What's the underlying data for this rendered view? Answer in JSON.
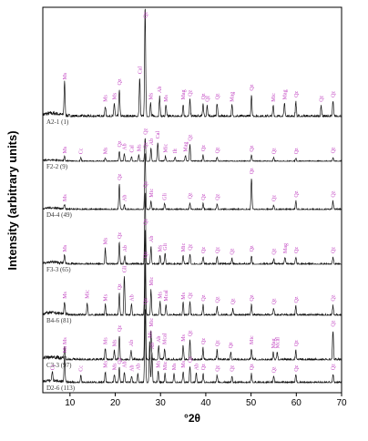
{
  "chart_data": {
    "type": "line",
    "xlabel": "°2θ",
    "ylabel": "Intensity (arbitrary units)",
    "xlim": [
      4,
      70
    ],
    "xticks": [
      10,
      20,
      30,
      40,
      50,
      60,
      70
    ],
    "colors": {
      "pattern": "#111111",
      "peak_label": "#c040c0",
      "sample_label": "#333333"
    },
    "series": [
      {
        "name": "A2-1 (1)",
        "peaks": [
          {
            "x": 8.8,
            "h": 0.3,
            "label": "Ms"
          },
          {
            "x": 17.8,
            "h": 0.1,
            "label": "Ms"
          },
          {
            "x": 19.8,
            "h": 0.12,
            "label": "Ms"
          },
          {
            "x": 20.9,
            "h": 0.25,
            "label": "Qz"
          },
          {
            "x": 25.4,
            "h": 0.35,
            "label": "Cal"
          },
          {
            "x": 26.6,
            "h": 1.0,
            "label": "Qz"
          },
          {
            "x": 27.8,
            "h": 0.12,
            "label": "Ms"
          },
          {
            "x": 29.8,
            "h": 0.18,
            "label": "Ab"
          },
          {
            "x": 31.2,
            "h": 0.1,
            "label": "Ms"
          },
          {
            "x": 35.0,
            "h": 0.12,
            "label": "Mag"
          },
          {
            "x": 36.5,
            "h": 0.15,
            "label": "Qz"
          },
          {
            "x": 39.4,
            "h": 0.12,
            "label": "Qz"
          },
          {
            "x": 40.3,
            "h": 0.1,
            "label": "Qz"
          },
          {
            "x": 42.5,
            "h": 0.12,
            "label": "Qz"
          },
          {
            "x": 45.8,
            "h": 0.1,
            "label": "Mag"
          },
          {
            "x": 50.1,
            "h": 0.2,
            "label": "Qz"
          },
          {
            "x": 54.9,
            "h": 0.1,
            "label": "Mic"
          },
          {
            "x": 57.4,
            "h": 0.12,
            "label": "Mag"
          },
          {
            "x": 59.9,
            "h": 0.14,
            "label": "Qz"
          },
          {
            "x": 65.5,
            "h": 0.1,
            "label": "Qz"
          },
          {
            "x": 68.1,
            "h": 0.14,
            "label": "Qz"
          }
        ]
      },
      {
        "name": "F2-2 (9)",
        "peaks": [
          {
            "x": 8.8,
            "h": 0.1,
            "label": "Ms"
          },
          {
            "x": 12.4,
            "h": 0.08,
            "label": "Cc"
          },
          {
            "x": 17.8,
            "h": 0.08,
            "label": "Ms"
          },
          {
            "x": 20.9,
            "h": 0.25,
            "label": "Qz"
          },
          {
            "x": 22.0,
            "h": 0.18,
            "label": "Ab"
          },
          {
            "x": 23.6,
            "h": 0.12,
            "label": "Cal"
          },
          {
            "x": 25.2,
            "h": 0.15,
            "label": "Ms"
          },
          {
            "x": 26.6,
            "h": 0.55,
            "label": "Qz"
          },
          {
            "x": 27.9,
            "h": 0.3,
            "label": "Ab"
          },
          {
            "x": 29.4,
            "h": 0.45,
            "label": "Cal"
          },
          {
            "x": 31.1,
            "h": 0.12,
            "label": "Mic"
          },
          {
            "x": 33.2,
            "h": 0.1,
            "label": "Ilt"
          },
          {
            "x": 35.5,
            "h": 0.14,
            "label": "Mag"
          },
          {
            "x": 36.5,
            "h": 0.4,
            "label": "Qz"
          },
          {
            "x": 39.4,
            "h": 0.15,
            "label": "Qz"
          },
          {
            "x": 42.5,
            "h": 0.1,
            "label": "Qz"
          },
          {
            "x": 50.1,
            "h": 0.14,
            "label": "Qz"
          },
          {
            "x": 55.0,
            "h": 0.08,
            "label": "Qz"
          },
          {
            "x": 59.9,
            "h": 0.08,
            "label": "Qz"
          },
          {
            "x": 68.1,
            "h": 0.1,
            "label": "Qz"
          }
        ]
      },
      {
        "name": "D4-4 (49)",
        "peaks": [
          {
            "x": 8.8,
            "h": 0.08,
            "label": "Ms"
          },
          {
            "x": 20.9,
            "h": 0.45,
            "label": "Qz"
          },
          {
            "x": 22.0,
            "h": 0.08,
            "label": "Ab"
          },
          {
            "x": 26.6,
            "h": 1.0,
            "label": "Qz"
          },
          {
            "x": 27.9,
            "h": 0.15,
            "label": "Mic"
          },
          {
            "x": 30.9,
            "h": 0.1,
            "label": "Gli"
          },
          {
            "x": 36.5,
            "h": 0.12,
            "label": "Qz"
          },
          {
            "x": 39.4,
            "h": 0.1,
            "label": "Qz"
          },
          {
            "x": 42.5,
            "h": 0.1,
            "label": "Qz"
          },
          {
            "x": 50.1,
            "h": 0.55,
            "label": "Qz"
          },
          {
            "x": 55.0,
            "h": 0.08,
            "label": "Qz"
          },
          {
            "x": 59.9,
            "h": 0.15,
            "label": "Qz"
          },
          {
            "x": 68.1,
            "h": 0.15,
            "label": "Qz"
          }
        ]
      },
      {
        "name": "F3-3 (65)",
        "peaks": [
          {
            "x": 8.8,
            "h": 0.12,
            "label": "Ms"
          },
          {
            "x": 17.8,
            "h": 0.22,
            "label": "Ms"
          },
          {
            "x": 20.9,
            "h": 0.3,
            "label": "Qz"
          },
          {
            "x": 22.1,
            "h": 0.12,
            "label": "Ab"
          },
          {
            "x": 26.6,
            "h": 1.0,
            "label": "Qz"
          },
          {
            "x": 27.9,
            "h": 0.25,
            "label": "Ab"
          },
          {
            "x": 29.9,
            "h": 0.12,
            "label": "Ms"
          },
          {
            "x": 31.0,
            "h": 0.14,
            "label": "Gli"
          },
          {
            "x": 35.0,
            "h": 0.12,
            "label": "Mic"
          },
          {
            "x": 36.5,
            "h": 0.14,
            "label": "Qz"
          },
          {
            "x": 39.4,
            "h": 0.1,
            "label": "Qz"
          },
          {
            "x": 42.5,
            "h": 0.1,
            "label": "Qz"
          },
          {
            "x": 45.8,
            "h": 0.08,
            "label": "Qz"
          },
          {
            "x": 50.1,
            "h": 0.12,
            "label": "Qz"
          },
          {
            "x": 55.0,
            "h": 0.08,
            "label": "Qz"
          },
          {
            "x": 57.5,
            "h": 0.1,
            "label": "Mag"
          },
          {
            "x": 59.9,
            "h": 0.1,
            "label": "Qz"
          },
          {
            "x": 68.1,
            "h": 0.1,
            "label": "Qz"
          }
        ]
      },
      {
        "name": "B4-6 (81)",
        "peaks": [
          {
            "x": 8.8,
            "h": 0.15,
            "label": "Ms"
          },
          {
            "x": 13.8,
            "h": 0.15,
            "label": "Mic"
          },
          {
            "x": 17.8,
            "h": 0.12,
            "label": "Ms"
          },
          {
            "x": 20.9,
            "h": 0.25,
            "label": "Qz"
          },
          {
            "x": 22.0,
            "h": 0.45,
            "label": "Gli"
          },
          {
            "x": 23.6,
            "h": 0.12,
            "label": "Ab"
          },
          {
            "x": 26.6,
            "h": 1.0,
            "label": "Qz"
          },
          {
            "x": 27.9,
            "h": 0.3,
            "label": "Mic"
          },
          {
            "x": 29.9,
            "h": 0.15,
            "label": "Ms"
          },
          {
            "x": 31.2,
            "h": 0.12,
            "label": "Mcal"
          },
          {
            "x": 35.0,
            "h": 0.14,
            "label": "Ms"
          },
          {
            "x": 36.5,
            "h": 0.15,
            "label": "Qz"
          },
          {
            "x": 39.4,
            "h": 0.12,
            "label": "Qz"
          },
          {
            "x": 42.5,
            "h": 0.1,
            "label": "Qz"
          },
          {
            "x": 46.0,
            "h": 0.08,
            "label": "Qz"
          },
          {
            "x": 50.1,
            "h": 0.12,
            "label": "Qz"
          },
          {
            "x": 55.0,
            "h": 0.08,
            "label": "Qz"
          },
          {
            "x": 59.9,
            "h": 0.1,
            "label": "Qz"
          },
          {
            "x": 68.1,
            "h": 0.12,
            "label": "Qz"
          }
        ]
      },
      {
        "name": "C3-3 (97)",
        "peaks": [
          {
            "x": 8.8,
            "h": 0.12,
            "label": "Ms"
          },
          {
            "x": 17.8,
            "h": 0.12,
            "label": "Ms"
          },
          {
            "x": 19.8,
            "h": 0.1,
            "label": "Ms"
          },
          {
            "x": 20.9,
            "h": 0.25,
            "label": "Qz"
          },
          {
            "x": 23.5,
            "h": 0.1,
            "label": "Ab"
          },
          {
            "x": 26.6,
            "h": 1.0,
            "label": "Qz"
          },
          {
            "x": 27.9,
            "h": 0.3,
            "label": "Mic"
          },
          {
            "x": 29.6,
            "h": 0.14,
            "label": "Ab"
          },
          {
            "x": 30.9,
            "h": 0.12,
            "label": "Mcal"
          },
          {
            "x": 35.0,
            "h": 0.15,
            "label": "Ms"
          },
          {
            "x": 36.5,
            "h": 0.2,
            "label": "Qz"
          },
          {
            "x": 39.4,
            "h": 0.12,
            "label": "Qz"
          },
          {
            "x": 42.5,
            "h": 0.1,
            "label": "Qz"
          },
          {
            "x": 45.5,
            "h": 0.08,
            "label": "Qz"
          },
          {
            "x": 50.1,
            "h": 0.12,
            "label": "Mic"
          },
          {
            "x": 54.9,
            "h": 0.08,
            "label": "Mag"
          },
          {
            "x": 55.8,
            "h": 0.08,
            "label": "Mcal"
          },
          {
            "x": 59.9,
            "h": 0.1,
            "label": "Qz"
          },
          {
            "x": 68.1,
            "h": 0.3,
            "label": "Qz"
          }
        ]
      },
      {
        "name": "D2-6 (113)",
        "peaks": [
          {
            "x": 6.1,
            "h": 0.12,
            "label": "Cc"
          },
          {
            "x": 8.8,
            "h": 0.35,
            "label": "Ms"
          },
          {
            "x": 12.4,
            "h": 0.1,
            "label": "Cc"
          },
          {
            "x": 17.8,
            "h": 0.15,
            "label": "Ms"
          },
          {
            "x": 19.8,
            "h": 0.12,
            "label": "Ms"
          },
          {
            "x": 20.9,
            "h": 0.2,
            "label": "Qz"
          },
          {
            "x": 22.0,
            "h": 0.15,
            "label": "Ab"
          },
          {
            "x": 23.6,
            "h": 0.1,
            "label": "Ab"
          },
          {
            "x": 25.0,
            "h": 0.12,
            "label": "Ab"
          },
          {
            "x": 26.6,
            "h": 1.0,
            "label": "Qz"
          },
          {
            "x": 27.6,
            "h": 0.55,
            "label": "Ms"
          },
          {
            "x": 28.1,
            "h": 0.4,
            "label": "Ab"
          },
          {
            "x": 29.5,
            "h": 0.15,
            "label": "Ms"
          },
          {
            "x": 31.0,
            "h": 0.12,
            "label": "Mic"
          },
          {
            "x": 33.0,
            "h": 0.12,
            "label": "Ms"
          },
          {
            "x": 35.0,
            "h": 0.15,
            "label": "Ms"
          },
          {
            "x": 36.5,
            "h": 0.22,
            "label": "Qz"
          },
          {
            "x": 37.9,
            "h": 0.12,
            "label": "Ab"
          },
          {
            "x": 39.4,
            "h": 0.12,
            "label": "Qz"
          },
          {
            "x": 42.5,
            "h": 0.1,
            "label": "Qz"
          },
          {
            "x": 45.8,
            "h": 0.1,
            "label": "Qz"
          },
          {
            "x": 50.1,
            "h": 0.12,
            "label": "Qz"
          },
          {
            "x": 55.0,
            "h": 0.08,
            "label": "Qz"
          },
          {
            "x": 59.9,
            "h": 0.1,
            "label": "Qz"
          },
          {
            "x": 68.1,
            "h": 0.12,
            "label": "Qz"
          }
        ]
      }
    ]
  }
}
